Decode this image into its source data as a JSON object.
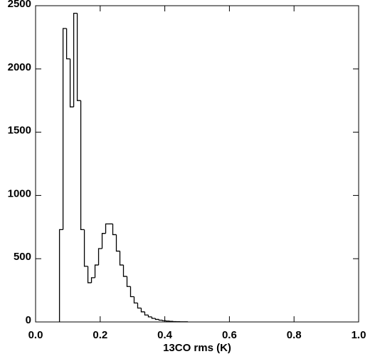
{
  "chart_data": {
    "type": "histogram",
    "x_label": "13CO rms (K)",
    "bins": [
      0.074,
      0.085,
      0.096,
      0.107,
      0.118,
      0.129,
      0.14,
      0.151,
      0.162,
      0.173,
      0.184,
      0.195,
      0.206,
      0.217,
      0.228,
      0.239,
      0.25,
      0.261,
      0.272,
      0.283,
      0.294,
      0.305,
      0.316,
      0.327,
      0.338,
      0.349,
      0.36,
      0.371,
      0.382,
      0.393,
      0.404,
      0.415,
      0.426,
      0.437,
      0.448,
      0.459,
      0.47
    ],
    "values": [
      730,
      2320,
      2080,
      1700,
      2440,
      1750,
      730,
      440,
      310,
      350,
      450,
      580,
      700,
      775,
      775,
      690,
      560,
      450,
      360,
      280,
      200,
      150,
      110,
      80,
      55,
      40,
      28,
      20,
      14,
      10,
      7,
      5,
      3,
      2,
      1,
      1
    ],
    "color": "#000000",
    "xlim": [
      0,
      1
    ],
    "xticks": [
      {
        "value": 0,
        "label": "0.0"
      },
      0.2,
      0.4,
      0.6,
      0.8,
      {
        "value": 1,
        "label": "1.0"
      }
    ],
    "ylim": [
      0,
      2500
    ],
    "yticks": [
      0,
      500,
      1000,
      1500,
      2000,
      2500
    ]
  }
}
